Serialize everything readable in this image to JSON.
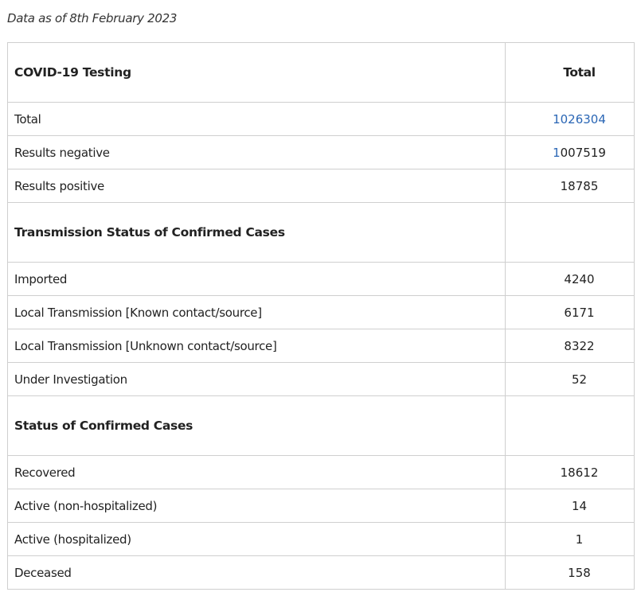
{
  "date_note": "Data as of 8th February 2023",
  "table": {
    "header": {
      "label": "COVID-19 Testing",
      "total_label": "Total"
    },
    "testing": [
      {
        "label": "Total",
        "value": "1026304"
      },
      {
        "label": "Results negative",
        "value_first": "1",
        "value_rest": "007519"
      },
      {
        "label": "Results positive",
        "value": "18785"
      }
    ],
    "transmission": {
      "title": "Transmission Status of Confirmed Cases",
      "rows": [
        {
          "label": "Imported",
          "value": "4240"
        },
        {
          "label": "Local Transmission [Known contact/source]",
          "value": "6171"
        },
        {
          "label": "Local Transmission [Unknown contact/source]",
          "value": "8322"
        },
        {
          "label": "Under Investigation",
          "value": "52"
        }
      ]
    },
    "status": {
      "title": "Status of Confirmed Cases",
      "rows": [
        {
          "label": "Recovered",
          "value": "18612"
        },
        {
          "label": "Active (non-hospitalized)",
          "value": "14"
        },
        {
          "label": "Active (hospitalized)",
          "value": "1"
        },
        {
          "label": "Deceased",
          "value": "158"
        }
      ]
    }
  },
  "colors": {
    "link": "#2a66b5",
    "border": "#cfcfcf",
    "text": "#222222"
  }
}
